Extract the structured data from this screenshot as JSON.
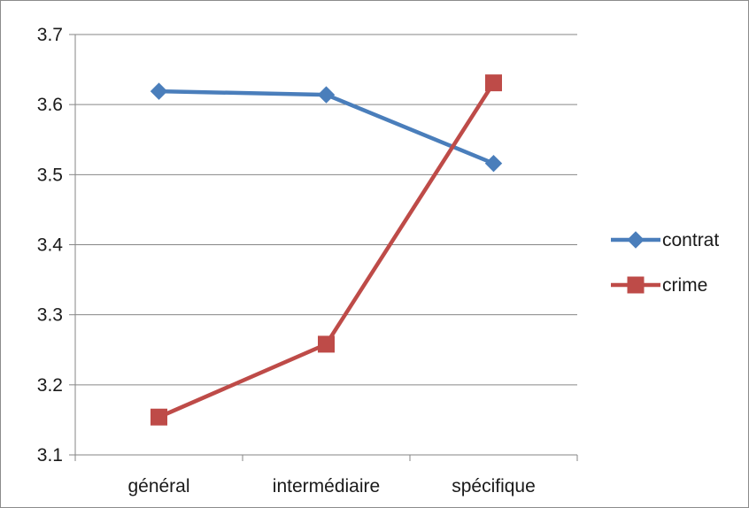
{
  "chart_data": {
    "type": "line",
    "title": "",
    "xlabel": "",
    "ylabel": "",
    "categories": [
      "général",
      "intermédiaire",
      "spécifique"
    ],
    "ylim": [
      3.1,
      3.7
    ],
    "yticks": [
      "3.1",
      "3.2",
      "3.3",
      "3.4",
      "3.5",
      "3.6",
      "3.7"
    ],
    "ytick_values": [
      3.1,
      3.2,
      3.3,
      3.4,
      3.5,
      3.6,
      3.7
    ],
    "grid": true,
    "legend_position": "right",
    "series": [
      {
        "name": "contrat",
        "values": [
          3.619,
          3.614,
          3.516
        ],
        "color": "#4a7ebb",
        "marker": "diamond"
      },
      {
        "name": "crime",
        "values": [
          3.154,
          3.258,
          3.631
        ],
        "color": "#be4b48",
        "marker": "square"
      }
    ]
  }
}
